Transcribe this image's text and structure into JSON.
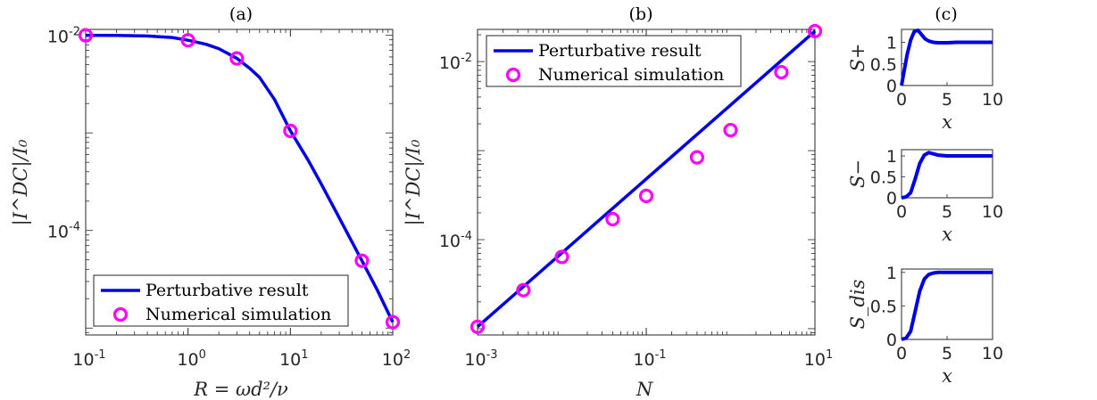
{
  "chart_data": [
    {
      "id": "a",
      "type": "line",
      "title": "(a)",
      "xscale": "log",
      "yscale": "log",
      "xlim": [
        0.1,
        100
      ],
      "ylim": [
        8.5e-06,
        0.0115
      ],
      "xticks": [
        {
          "value": 0.1,
          "base": "10",
          "exp": "-1"
        },
        {
          "value": 1,
          "base": "10",
          "exp": "0"
        },
        {
          "value": 10,
          "base": "10",
          "exp": "1"
        },
        {
          "value": 100,
          "base": "10",
          "exp": "2"
        }
      ],
      "yticks": [
        {
          "value": 0.01,
          "base": "10",
          "exp": "-2"
        },
        {
          "value": 0.0001,
          "base": "10",
          "exp": "-4"
        }
      ],
      "xlabel": "R = ωd²/ν",
      "ylabel": "|I^DC|/I₀",
      "legend_position": "bottom-left",
      "series": [
        {
          "name": "Perturbative result",
          "style": "line",
          "color": "#0000e6",
          "x": [
            0.1,
            0.2,
            0.4,
            0.7,
            1,
            1.5,
            2,
            3,
            4,
            5,
            7,
            10,
            15,
            20,
            30,
            50,
            70,
            100
          ],
          "y": [
            0.01,
            0.00998,
            0.00985,
            0.0095,
            0.0089,
            0.0081,
            0.0073,
            0.0058,
            0.0046,
            0.0037,
            0.0022,
            0.00105,
            0.00052,
            0.0003,
            0.000135,
            4.9e-05,
            2.5e-05,
            1.15e-05
          ]
        },
        {
          "name": "Numerical simulation",
          "style": "markers",
          "color": "#ff00ff",
          "x": [
            0.1,
            1,
            3,
            10,
            50,
            100
          ],
          "y": [
            0.01,
            0.0089,
            0.0058,
            0.00105,
            4.9e-05,
            1.15e-05
          ]
        }
      ]
    },
    {
      "id": "b",
      "type": "line",
      "title": "(b)",
      "xscale": "log",
      "yscale": "log",
      "xlim": [
        0.001,
        10
      ],
      "ylim": [
        8.5e-06,
        0.023
      ],
      "xticks": [
        {
          "value": 0.001,
          "base": "10",
          "exp": "-3"
        },
        {
          "value": 0.1,
          "base": "10",
          "exp": "-1"
        },
        {
          "value": 10,
          "base": "10",
          "exp": "1"
        }
      ],
      "yticks": [
        {
          "value": 0.01,
          "base": "10",
          "exp": "-2"
        },
        {
          "value": 0.0001,
          "base": "10",
          "exp": "-4"
        }
      ],
      "xlabel": "N",
      "ylabel": "|I^DC|/I₀",
      "legend_position": "top-left",
      "series": [
        {
          "name": "Perturbative result",
          "style": "line",
          "color": "#0000e6",
          "x": [
            0.001,
            10
          ],
          "y": [
            1.05e-05,
            0.022
          ]
        },
        {
          "name": "Numerical simulation",
          "style": "markers",
          "color": "#ff00ff",
          "x": [
            0.001,
            0.0035,
            0.01,
            0.04,
            0.1,
            0.4,
            1,
            4,
            10
          ],
          "y": [
            1.05e-05,
            2.71e-05,
            6.4e-05,
            0.00017,
            0.00031,
            0.00084,
            0.0017,
            0.0076,
            0.022
          ]
        }
      ]
    },
    {
      "id": "c1",
      "type": "line",
      "title": "(c)",
      "xlim": [
        0,
        10
      ],
      "ylim": [
        0,
        1.3
      ],
      "xticks": [
        0,
        5,
        10
      ],
      "yticks": [
        0,
        0.5,
        1
      ],
      "xlabel": "x",
      "ylabel": "S+",
      "series": [
        {
          "name": "S+",
          "color": "#0000e6",
          "x": [
            0,
            0.3,
            0.6,
            1.0,
            1.4,
            1.8,
            2.2,
            2.6,
            3.0,
            3.5,
            4.0,
            5.0,
            6.0,
            8.0,
            10.0
          ],
          "y": [
            0,
            0.35,
            0.7,
            1.05,
            1.25,
            1.28,
            1.18,
            1.08,
            1.03,
            1.0,
            0.99,
            0.99,
            1.0,
            1.0,
            1.0
          ]
        }
      ]
    },
    {
      "id": "c2",
      "type": "line",
      "xlim": [
        0,
        10
      ],
      "ylim": [
        0,
        1.15
      ],
      "xticks": [
        0,
        5,
        10
      ],
      "yticks": [
        0,
        0.5,
        1
      ],
      "xlabel": "x",
      "ylabel": "S−",
      "series": [
        {
          "name": "S−",
          "color": "#0000e6",
          "x": [
            0,
            0.5,
            1.0,
            1.5,
            2.0,
            2.5,
            3.0,
            3.5,
            4.0,
            5.0,
            6.0,
            8.0,
            10.0
          ],
          "y": [
            0,
            0.02,
            0.12,
            0.45,
            0.82,
            1.02,
            1.08,
            1.05,
            1.02,
            1.0,
            1.0,
            1.0,
            1.0
          ]
        }
      ]
    },
    {
      "id": "c3",
      "type": "line",
      "xlim": [
        0,
        10
      ],
      "ylim": [
        0,
        1.05
      ],
      "xticks": [
        0,
        5,
        10
      ],
      "yticks": [
        0,
        0.5,
        1
      ],
      "xlabel": "x",
      "ylabel": "S_dis",
      "series": [
        {
          "name": "S_dis",
          "color": "#0000e6",
          "x": [
            0,
            0.5,
            1.0,
            1.5,
            2.0,
            2.5,
            3.0,
            3.5,
            4.0,
            5.0,
            6.0,
            8.0,
            10.0
          ],
          "y": [
            0,
            0.02,
            0.12,
            0.42,
            0.72,
            0.9,
            0.97,
            0.99,
            1.0,
            1.0,
            1.0,
            1.0,
            1.0
          ]
        }
      ]
    }
  ]
}
